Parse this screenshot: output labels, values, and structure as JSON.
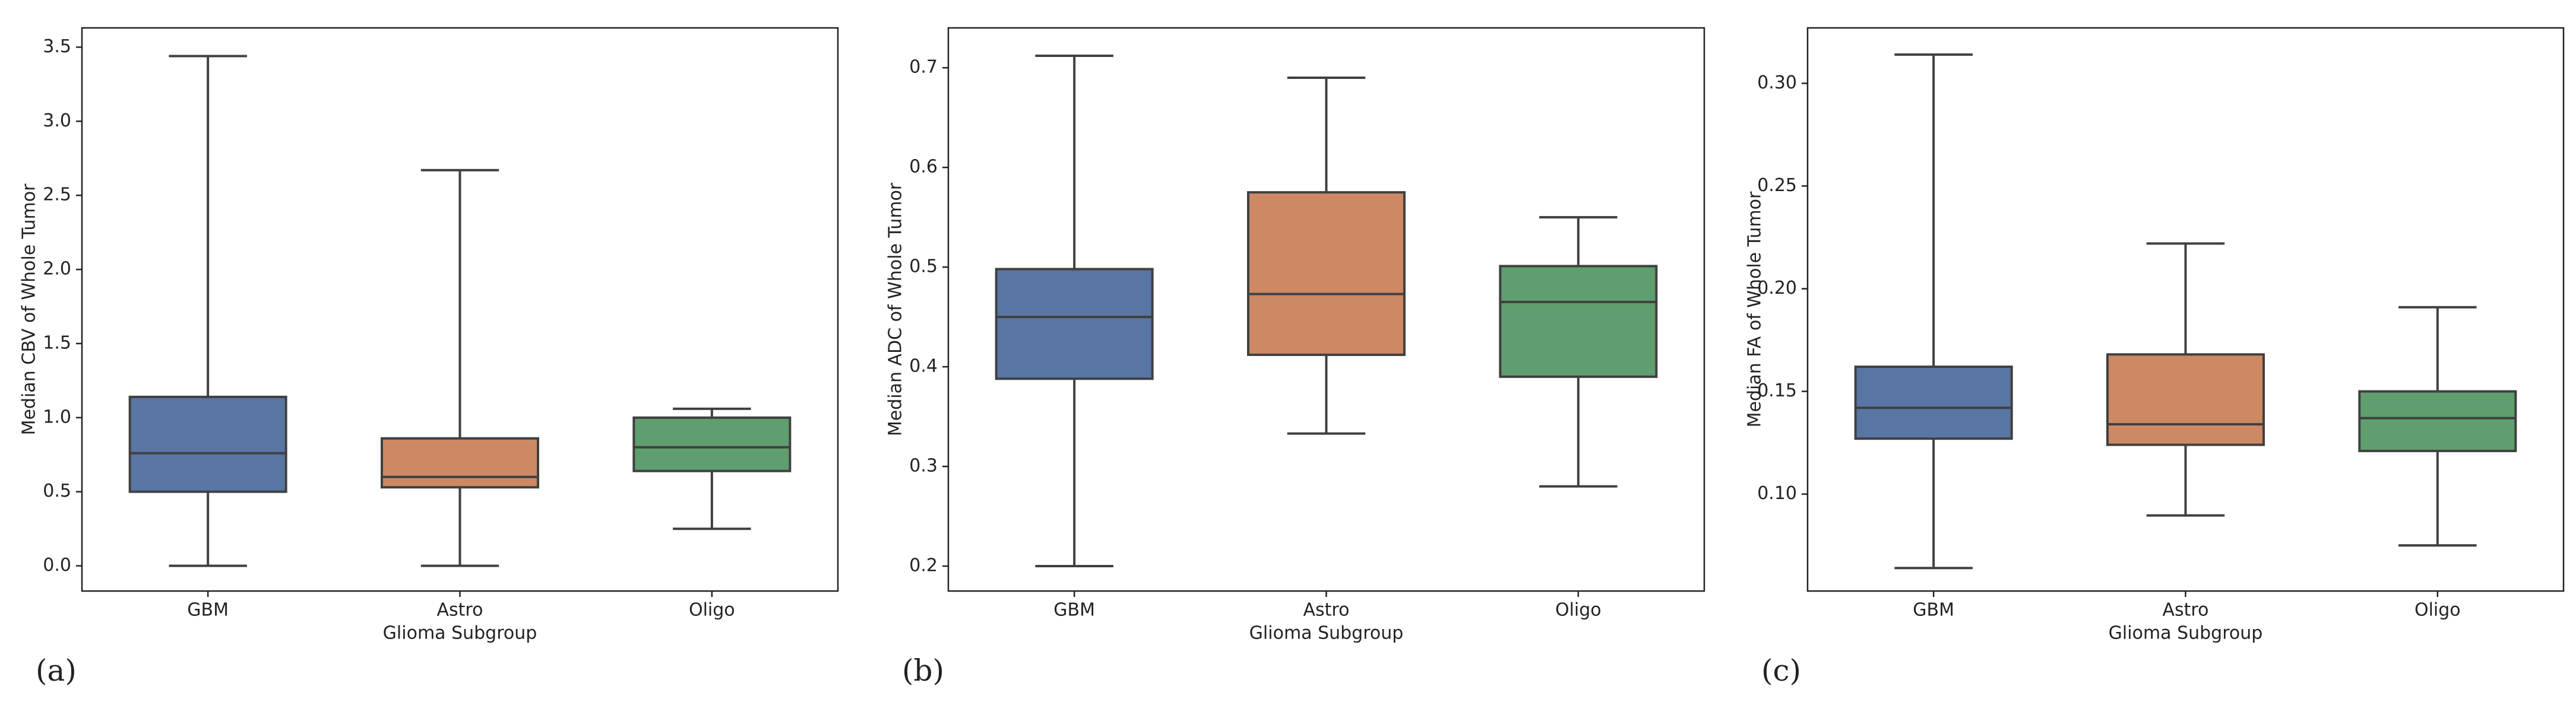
{
  "chart_data": [
    {
      "type": "box",
      "label": "(a)",
      "xlabel": "Glioma Subgroup",
      "ylabel": "Median CBV of Whole Tumor",
      "categories": [
        "GBM",
        "Astro",
        "Oligo"
      ],
      "colors": [
        "#5875a4",
        "#cc8963",
        "#5f9e6e"
      ],
      "min": [
        0,
        0,
        0.25
      ],
      "q1": [
        0.5,
        0.53,
        0.64
      ],
      "median": [
        0.76,
        0.6,
        0.8
      ],
      "q3": [
        1.14,
        0.86,
        1.0
      ],
      "max": [
        3.44,
        2.67,
        1.06
      ],
      "ylim": [
        -0.17,
        3.63
      ],
      "yticks": [
        {
          "value": 0,
          "label": "0.0"
        },
        0.5,
        {
          "value": 1,
          "label": "1.0"
        },
        1.5,
        {
          "value": 2,
          "label": "2.0"
        },
        2.5,
        {
          "value": 3,
          "label": "3.0"
        },
        3.5
      ]
    },
    {
      "type": "box",
      "label": "(b)",
      "xlabel": "Glioma Subgroup",
      "ylabel": "Median ADC of Whole Tumor",
      "categories": [
        "GBM",
        "Astro",
        "Oligo"
      ],
      "colors": [
        "#5875a4",
        "#cc8963",
        "#5f9e6e"
      ],
      "min": [
        0.2,
        0.333,
        0.28
      ],
      "q1": [
        0.388,
        0.412,
        0.39
      ],
      "median": [
        0.45,
        0.473,
        0.465
      ],
      "q3": [
        0.498,
        0.575,
        0.501
      ],
      "max": [
        0.712,
        0.69,
        0.55
      ],
      "ylim": [
        0.175,
        0.74
      ],
      "yticks": [
        0.2,
        0.3,
        0.4,
        0.5,
        0.6,
        0.7
      ]
    },
    {
      "type": "box",
      "label": "(c)",
      "xlabel": "Glioma Subgroup",
      "ylabel": "Median FA of Whole Tumor",
      "categories": [
        "GBM",
        "Astro",
        "Oligo"
      ],
      "colors": [
        "#5875a4",
        "#cc8963",
        "#5f9e6e"
      ],
      "min": [
        0.064,
        0.0896,
        0.075
      ],
      "q1": [
        0.127,
        0.124,
        0.121
      ],
      "median": [
        0.142,
        0.134,
        0.137
      ],
      "q3": [
        0.162,
        0.168,
        0.15
      ],
      "max": [
        0.314,
        0.222,
        0.191
      ],
      "ylim": [
        0.0528,
        0.327
      ],
      "yticks": [
        {
          "value": 0.1,
          "label": "0.10"
        },
        0.15,
        {
          "value": 0.2,
          "label": "0.20"
        },
        0.25,
        {
          "value": 0.3,
          "label": "0.30"
        }
      ]
    }
  ]
}
